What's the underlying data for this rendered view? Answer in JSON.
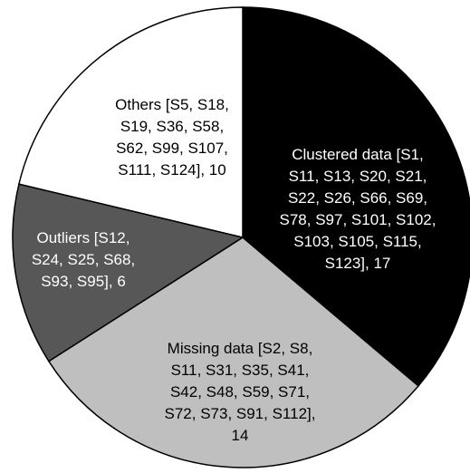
{
  "chart_data": {
    "type": "pie",
    "categories": [
      "Clustered data  [S1, S11, S13, S20, S21, S22, S26, S66, S69, S78, S97, S101, S102, S103, S105, S115, S123], 17",
      "Missing data [S2, S8, S11, S31, S35, S41, S42, S48, S59, S71, S72, S73, S91, S112], 14",
      "Outliers [S12, S24, S25, S68, S93, S95], 6",
      "Others [S5, S18, S19, S36, S58, S62, S99, S107, S111, S124], 10"
    ],
    "values": [
      17,
      14,
      6,
      10
    ],
    "colors": [
      "#000000",
      "#bfbfbf",
      "#575757",
      "#ffffff"
    ]
  }
}
